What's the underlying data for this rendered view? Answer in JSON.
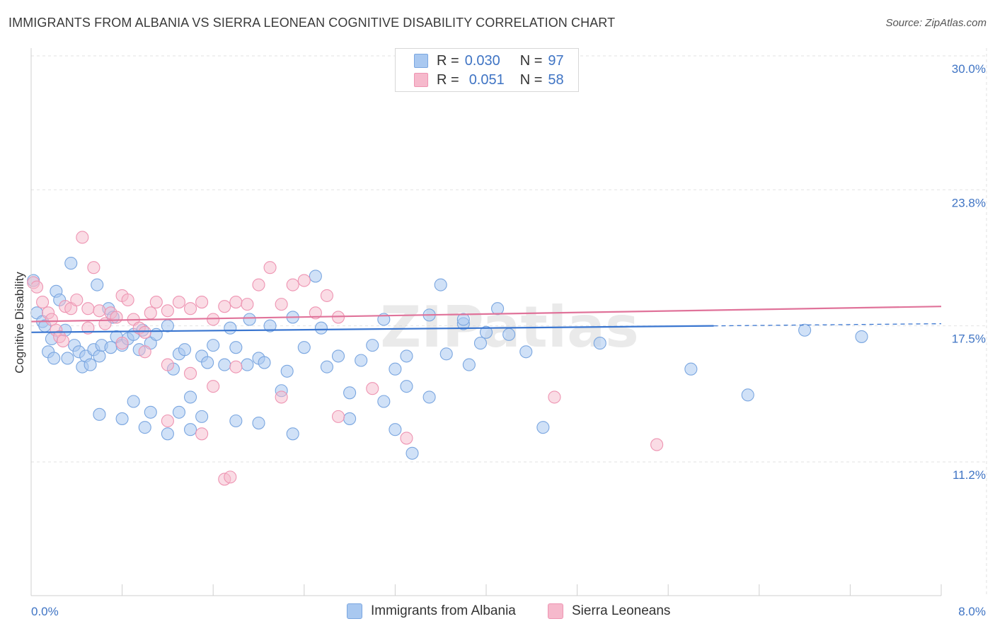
{
  "title": "IMMIGRANTS FROM ALBANIA VS SIERRA LEONEAN COGNITIVE DISABILITY CORRELATION CHART",
  "source": "Source: ZipAtlas.com",
  "watermark": "ZIPatlas",
  "legend_top": {
    "rows": [
      {
        "r_key": "R =",
        "r_val": "0.030",
        "n_key": "N =",
        "n_val": "97"
      },
      {
        "r_key": "R =",
        "r_val": "0.051",
        "n_key": "N =",
        "n_val": "58"
      }
    ]
  },
  "colors": {
    "blue_fill": "#a9c8f0",
    "blue_stroke": "#7aa6e0",
    "blue_line": "#3a76d0",
    "pink_fill": "#f6b9cc",
    "pink_stroke": "#ee94b2",
    "pink_line": "#e0739a",
    "tick_label": "#3f74c4",
    "grid": "#e2e2e2"
  },
  "chart_data": {
    "type": "scatter",
    "title": "IMMIGRANTS FROM ALBANIA VS SIERRA LEONEAN COGNITIVE DISABILITY CORRELATION CHART",
    "xlabel": "",
    "ylabel": "Cognitive Disability",
    "xlim": [
      0,
      8.0
    ],
    "ylim": [
      3.0,
      31.0
    ],
    "x_tick_labels": [
      "0.0%",
      "8.0%"
    ],
    "y_ticks": [
      11.2,
      17.5,
      23.8,
      30.0
    ],
    "y_tick_labels": [
      "11.2%",
      "17.5%",
      "23.8%",
      "30.0%"
    ],
    "grid": true,
    "legend": "top-center and bottom",
    "series": [
      {
        "name": "Immigrants from Albania",
        "color": "#a9c8f0",
        "r": "0.030",
        "n": "97",
        "trend": {
          "x": [
            0.0,
            6.0
          ],
          "y": [
            17.2,
            17.5
          ],
          "dashed_to": 8.0,
          "dashed_end_y": 17.6
        },
        "points": [
          [
            0.02,
            19.6
          ],
          [
            0.05,
            18.1
          ],
          [
            0.1,
            17.7
          ],
          [
            0.12,
            17.5
          ],
          [
            0.15,
            16.3
          ],
          [
            0.18,
            16.9
          ],
          [
            0.2,
            16.0
          ],
          [
            0.22,
            19.1
          ],
          [
            0.25,
            18.7
          ],
          [
            0.3,
            17.3
          ],
          [
            0.32,
            16.0
          ],
          [
            0.35,
            20.4
          ],
          [
            0.38,
            16.6
          ],
          [
            0.42,
            16.3
          ],
          [
            0.45,
            15.6
          ],
          [
            0.48,
            16.1
          ],
          [
            0.52,
            15.7
          ],
          [
            0.55,
            16.4
          ],
          [
            0.58,
            19.4
          ],
          [
            0.6,
            16.1
          ],
          [
            0.62,
            16.6
          ],
          [
            0.68,
            18.3
          ],
          [
            0.7,
            16.5
          ],
          [
            0.72,
            17.9
          ],
          [
            0.75,
            17.0
          ],
          [
            0.8,
            16.6
          ],
          [
            0.85,
            16.9
          ],
          [
            0.9,
            17.1
          ],
          [
            0.95,
            16.4
          ],
          [
            0.98,
            17.3
          ],
          [
            1.05,
            16.7
          ],
          [
            1.1,
            17.1
          ],
          [
            1.2,
            17.5
          ],
          [
            1.25,
            15.5
          ],
          [
            1.3,
            16.2
          ],
          [
            1.35,
            16.4
          ],
          [
            1.4,
            14.2
          ],
          [
            1.5,
            16.1
          ],
          [
            1.55,
            15.8
          ],
          [
            1.6,
            16.6
          ],
          [
            1.7,
            15.7
          ],
          [
            1.75,
            17.4
          ],
          [
            1.8,
            16.5
          ],
          [
            1.9,
            15.7
          ],
          [
            1.92,
            17.8
          ],
          [
            2.0,
            16.0
          ],
          [
            2.05,
            15.8
          ],
          [
            2.1,
            17.5
          ],
          [
            2.2,
            14.5
          ],
          [
            2.25,
            15.4
          ],
          [
            2.3,
            17.9
          ],
          [
            2.4,
            16.5
          ],
          [
            2.5,
            19.8
          ],
          [
            2.55,
            17.4
          ],
          [
            2.6,
            15.6
          ],
          [
            2.7,
            16.1
          ],
          [
            2.8,
            14.4
          ],
          [
            2.9,
            15.9
          ],
          [
            3.0,
            16.6
          ],
          [
            3.1,
            17.8
          ],
          [
            3.2,
            15.5
          ],
          [
            3.3,
            16.1
          ],
          [
            3.5,
            14.2
          ],
          [
            3.6,
            19.4
          ],
          [
            3.65,
            16.2
          ],
          [
            3.8,
            17.6
          ],
          [
            3.85,
            15.7
          ],
          [
            3.95,
            16.7
          ],
          [
            4.1,
            18.3
          ],
          [
            4.2,
            17.1
          ],
          [
            4.35,
            16.3
          ],
          [
            0.6,
            13.4
          ],
          [
            0.8,
            13.2
          ],
          [
            1.0,
            12.8
          ],
          [
            1.05,
            13.5
          ],
          [
            1.2,
            12.5
          ],
          [
            1.3,
            13.5
          ],
          [
            1.5,
            13.3
          ],
          [
            0.9,
            14.0
          ],
          [
            1.4,
            12.7
          ],
          [
            1.8,
            13.1
          ],
          [
            2.0,
            13.0
          ],
          [
            2.3,
            12.5
          ],
          [
            2.8,
            13.2
          ],
          [
            3.1,
            14.0
          ],
          [
            3.3,
            14.7
          ],
          [
            3.5,
            18.0
          ],
          [
            3.8,
            17.8
          ],
          [
            4.0,
            17.2
          ],
          [
            3.2,
            12.7
          ],
          [
            3.35,
            11.6
          ],
          [
            4.5,
            12.8
          ],
          [
            5.0,
            16.7
          ],
          [
            5.8,
            15.5
          ],
          [
            6.3,
            14.3
          ],
          [
            6.8,
            17.3
          ],
          [
            7.3,
            17.0
          ]
        ]
      },
      {
        "name": "Sierra Leoneans",
        "color": "#f6b9cc",
        "r": "0.051",
        "n": "58",
        "trend": {
          "x": [
            0.0,
            8.0
          ],
          "y": [
            17.7,
            18.4
          ]
        },
        "points": [
          [
            0.02,
            19.5
          ],
          [
            0.05,
            19.3
          ],
          [
            0.1,
            18.6
          ],
          [
            0.15,
            18.1
          ],
          [
            0.18,
            17.8
          ],
          [
            0.22,
            17.3
          ],
          [
            0.25,
            17.0
          ],
          [
            0.28,
            16.8
          ],
          [
            0.3,
            18.4
          ],
          [
            0.35,
            18.3
          ],
          [
            0.4,
            18.7
          ],
          [
            0.45,
            21.6
          ],
          [
            0.5,
            18.3
          ],
          [
            0.55,
            20.2
          ],
          [
            0.6,
            18.2
          ],
          [
            0.65,
            17.6
          ],
          [
            0.7,
            18.1
          ],
          [
            0.75,
            17.9
          ],
          [
            0.8,
            18.9
          ],
          [
            0.85,
            18.7
          ],
          [
            0.9,
            17.8
          ],
          [
            0.95,
            17.4
          ],
          [
            1.0,
            17.2
          ],
          [
            1.05,
            18.1
          ],
          [
            1.1,
            18.6
          ],
          [
            1.2,
            18.2
          ],
          [
            1.3,
            18.6
          ],
          [
            1.4,
            18.3
          ],
          [
            1.5,
            18.6
          ],
          [
            1.6,
            17.8
          ],
          [
            1.7,
            18.4
          ],
          [
            1.8,
            18.6
          ],
          [
            1.9,
            18.5
          ],
          [
            2.0,
            19.4
          ],
          [
            2.1,
            20.2
          ],
          [
            2.2,
            18.5
          ],
          [
            2.3,
            19.4
          ],
          [
            2.4,
            19.6
          ],
          [
            2.5,
            18.1
          ],
          [
            2.6,
            18.9
          ],
          [
            2.7,
            17.9
          ],
          [
            0.5,
            17.4
          ],
          [
            0.8,
            16.7
          ],
          [
            1.0,
            16.3
          ],
          [
            1.2,
            15.7
          ],
          [
            1.4,
            15.3
          ],
          [
            1.6,
            14.7
          ],
          [
            1.8,
            15.6
          ],
          [
            1.2,
            13.1
          ],
          [
            1.5,
            12.5
          ],
          [
            1.7,
            10.4
          ],
          [
            1.75,
            10.5
          ],
          [
            2.2,
            14.2
          ],
          [
            2.7,
            13.3
          ],
          [
            3.0,
            14.6
          ],
          [
            3.3,
            12.3
          ],
          [
            4.6,
            14.2
          ],
          [
            5.5,
            12.0
          ]
        ]
      }
    ]
  },
  "bottom_legend": {
    "items": [
      {
        "label": "Immigrants from Albania"
      },
      {
        "label": "Sierra Leoneans"
      }
    ]
  }
}
